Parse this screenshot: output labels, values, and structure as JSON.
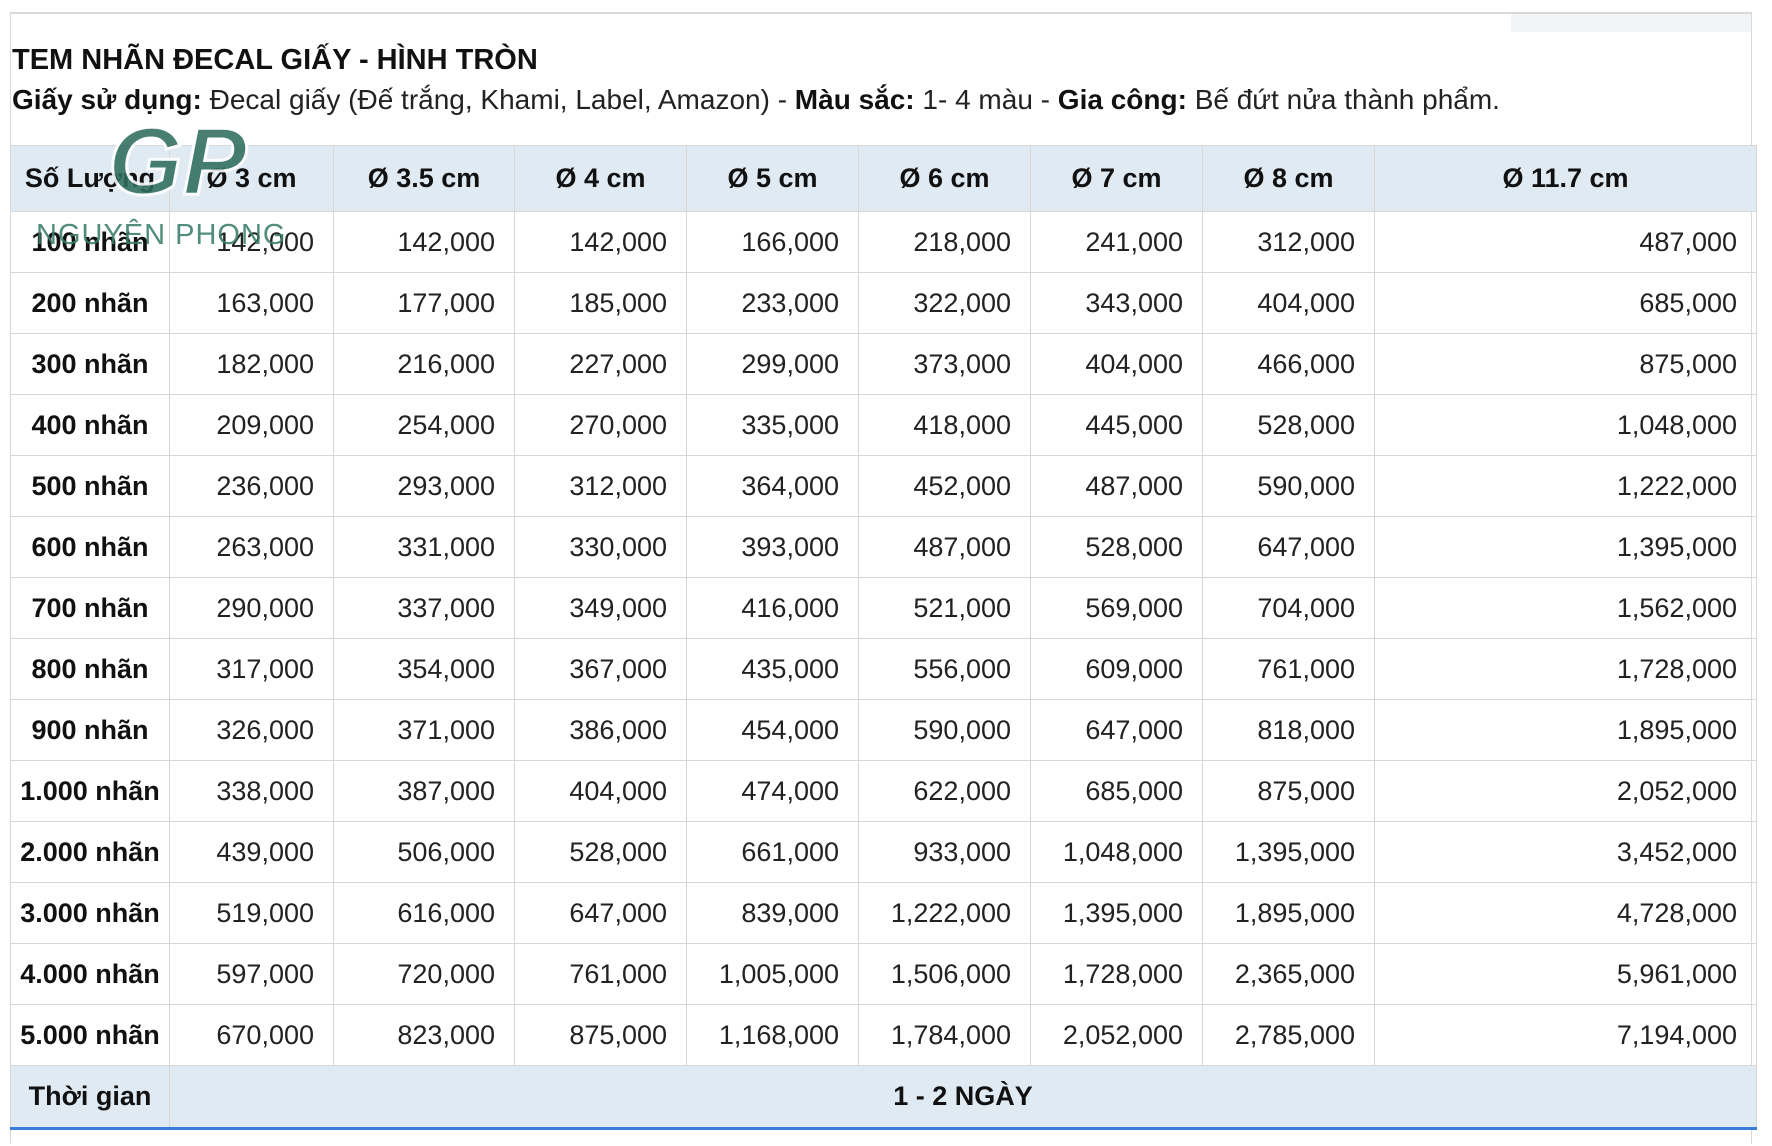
{
  "document": {
    "title": "TEM NHÃN ĐECAL GIẤY - HÌNH TRÒN",
    "paper_label": "Giấy sử dụng:",
    "paper_value": " Đecal giấy (Đế trắng, Khami, Label, Amazon) - ",
    "color_label": "Màu sắc:",
    "color_value": "  1- 4 màu - ",
    "processing_label": "Gia công:",
    "processing_value": " Bế đứt nửa thành phẩm."
  },
  "watermark": {
    "logo_letters": "GP",
    "brand": "NGUYÊN PHONG",
    "color": "#2f6e5e"
  },
  "table": {
    "headers": [
      "Số Lượng",
      "Ø 3 cm",
      "Ø 3.5 cm",
      "Ø 4 cm",
      "Ø 5 cm",
      "Ø 6 cm",
      "Ø 7 cm",
      "Ø 8 cm",
      "Ø 11.7 cm"
    ],
    "rows": [
      [
        "100 nhãn",
        "142,000",
        "142,000",
        "142,000",
        "166,000",
        "218,000",
        "241,000",
        "312,000",
        "487,000"
      ],
      [
        "200 nhãn",
        "163,000",
        "177,000",
        "185,000",
        "233,000",
        "322,000",
        "343,000",
        "404,000",
        "685,000"
      ],
      [
        "300 nhãn",
        "182,000",
        "216,000",
        "227,000",
        "299,000",
        "373,000",
        "404,000",
        "466,000",
        "875,000"
      ],
      [
        "400 nhãn",
        "209,000",
        "254,000",
        "270,000",
        "335,000",
        "418,000",
        "445,000",
        "528,000",
        "1,048,000"
      ],
      [
        "500 nhãn",
        "236,000",
        "293,000",
        "312,000",
        "364,000",
        "452,000",
        "487,000",
        "590,000",
        "1,222,000"
      ],
      [
        "600 nhãn",
        "263,000",
        "331,000",
        "330,000",
        "393,000",
        "487,000",
        "528,000",
        "647,000",
        "1,395,000"
      ],
      [
        "700 nhãn",
        "290,000",
        "337,000",
        "349,000",
        "416,000",
        "521,000",
        "569,000",
        "704,000",
        "1,562,000"
      ],
      [
        "800 nhãn",
        "317,000",
        "354,000",
        "367,000",
        "435,000",
        "556,000",
        "609,000",
        "761,000",
        "1,728,000"
      ],
      [
        "900 nhãn",
        "326,000",
        "371,000",
        "386,000",
        "454,000",
        "590,000",
        "647,000",
        "818,000",
        "1,895,000"
      ],
      [
        "1.000 nhãn",
        "338,000",
        "387,000",
        "404,000",
        "474,000",
        "622,000",
        "685,000",
        "875,000",
        "2,052,000"
      ],
      [
        "2.000 nhãn",
        "439,000",
        "506,000",
        "528,000",
        "661,000",
        "933,000",
        "1,048,000",
        "1,395,000",
        "3,452,000"
      ],
      [
        "3.000 nhãn",
        "519,000",
        "616,000",
        "647,000",
        "839,000",
        "1,222,000",
        "1,395,000",
        "1,895,000",
        "4,728,000"
      ],
      [
        "4.000 nhãn",
        "597,000",
        "720,000",
        "761,000",
        "1,005,000",
        "1,506,000",
        "1,728,000",
        "2,365,000",
        "5,961,000"
      ],
      [
        "5.000 nhãn",
        "670,000",
        "823,000",
        "875,000",
        "1,168,000",
        "1,784,000",
        "2,052,000",
        "2,785,000",
        "7,194,000"
      ]
    ],
    "footer_label": "Thời gian",
    "footer_value": "1 - 2 NGÀY",
    "header_background": "#dfeaf3",
    "bottom_accent": "#3a7dd8"
  }
}
